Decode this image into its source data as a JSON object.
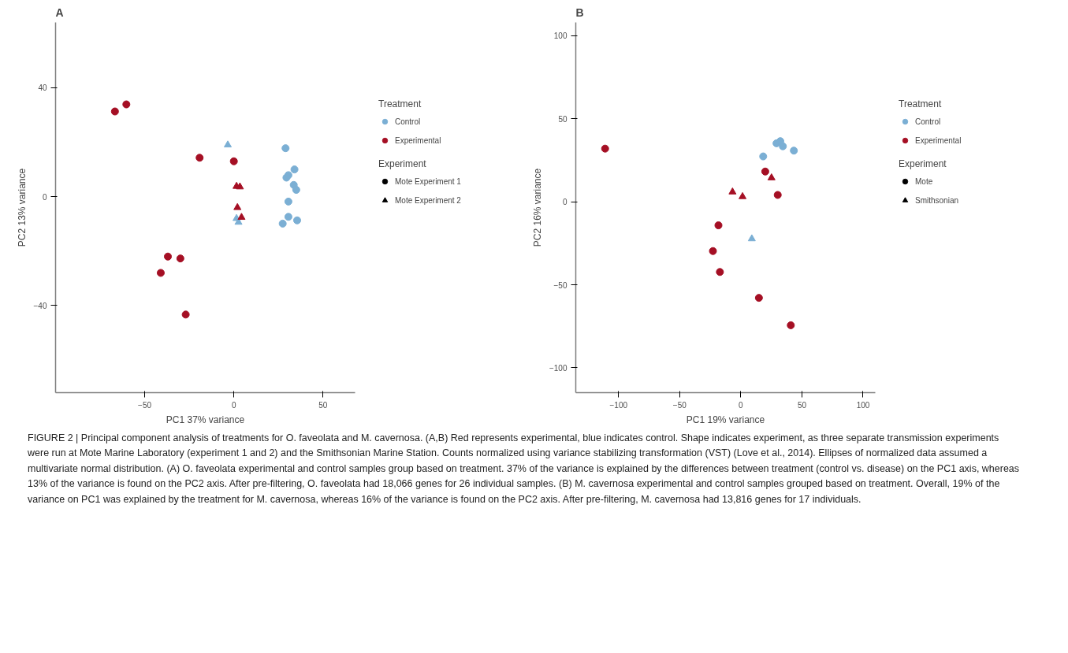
{
  "chart_data": [
    {
      "type": "scatter",
      "title": "A",
      "xlabel": "PC1 37% variance",
      "ylabel": "PC2 13% variance",
      "xlim": [
        -100,
        68
      ],
      "ylim": [
        -72,
        64
      ],
      "xticks": [
        -50,
        0,
        50
      ],
      "yticks": [
        -40,
        0,
        40
      ],
      "grid": false,
      "legend": "right",
      "legend_title": [
        "Treatment",
        "Experiment"
      ],
      "annotations": [
        "FIGURE 2 | Principal component analysis of treatments for O. faveolata and M. cavernosa. (A,B) Red represents experimental, blue indicates control. Shape indicates experiment, as three separate transmission experiments were run at Mote Marine Laboratory (experiment 1 and 2) and the Smithsonian Marine Station. Counts normalized using variance stabilizing transformation (VST) (Love et al., 2014). Ellipses of normalized data assumed a multivariate normal distribution. (A) O. faveolata experimental and control samples group based on treatment. 37% of the variance is explained by the differences between treatment (control vs. disease) on the PC1 axis, whereas 13% of the variance is found on the PC2 axis. After pre-filtering, O. faveolata had 18,066 genes for 26 individual samples. (B) M. cavernosa experimental and control samples grouped based on treatment. Overall, 19% of the variance on PC1 was explained by the treatment for M. cavernosa, whereas 16% of the variance is found on the PC2 axis. After pre-filtering, M. cavernosa had 13,816 genes for 17 individuals."
      ],
      "series": [
        {
          "color": "#7bafd4",
          "marker": "circle",
          "x": [
            29,
            34,
            30.6,
            29.5,
            33.6,
            35,
            30.6,
            30.6,
            35.5,
            27.4
          ],
          "values": [
            17.8,
            10,
            7.9,
            7,
            4.3,
            2.5,
            -1.8,
            -7.4,
            -8.7,
            -9.9
          ]
        },
        {
          "color": "#7bafd4",
          "marker": "triangle",
          "x": [
            -3.4,
            2.6,
            1.5
          ],
          "values": [
            19,
            -9.4,
            -8
          ]
        },
        {
          "color": "#a50f24",
          "marker": "circle",
          "x": [
            -66.7,
            -60.3,
            -19.2,
            0,
            -37,
            -30,
            -41,
            -27
          ],
          "values": [
            31.3,
            33.9,
            14.3,
            13,
            -22,
            -22.7,
            -28,
            -43.3
          ]
        },
        {
          "color": "#a50f24",
          "marker": "triangle",
          "x": [
            3.4,
            1.5,
            2,
            4.3
          ],
          "values": [
            3.6,
            3.8,
            -4,
            -7.6
          ]
        },
        {
          "name": "Control",
          "color": "#7bafd4",
          "marker": "circle"
        },
        {
          "name": "Experimental",
          "color": "#a50f24",
          "marker": "circle"
        },
        {
          "name": "Mote Experiment 1",
          "color": "#000000",
          "marker": "circle"
        },
        {
          "name": "Mote Experiment 2",
          "color": "#000000",
          "marker": "triangle"
        }
      ]
    },
    {
      "type": "scatter",
      "title": "B",
      "xlabel": "PC1 19% variance",
      "ylabel": "PC2 16% variance",
      "xlim": [
        -135,
        110
      ],
      "ylim": [
        -115,
        108
      ],
      "xticks": [
        -100,
        -50,
        0,
        50,
        100
      ],
      "yticks": [
        -100,
        -50,
        0,
        50,
        100
      ],
      "grid": false,
      "legend": "right",
      "legend_title": [
        "Treatment",
        "Experiment"
      ],
      "series": [
        {
          "color": "#7bafd4",
          "marker": "circle",
          "x": [
            18.3,
            29.2,
            32.3,
            34.4,
            43.4
          ],
          "values": [
            27.3,
            35.2,
            36.5,
            33.4,
            30.8
          ]
        },
        {
          "color": "#7bafd4",
          "marker": "triangle",
          "x": [
            9
          ],
          "values": [
            -22.3
          ]
        },
        {
          "color": "#a50f24",
          "marker": "circle",
          "x": [
            -111,
            20,
            30.2,
            -18.3,
            -22.8,
            -17.1,
            14.8,
            40.9
          ],
          "values": [
            32,
            18.2,
            4.1,
            -14.2,
            -29.7,
            -42.3,
            -57.9,
            -74.4
          ]
        },
        {
          "color": "#a50f24",
          "marker": "triangle",
          "x": [
            -6.8,
            1.4,
            25.1
          ],
          "values": [
            5.9,
            3.1,
            14.4
          ]
        },
        {
          "name": "Control",
          "color": "#7bafd4",
          "marker": "circle"
        },
        {
          "name": "Experimental",
          "color": "#a50f24",
          "marker": "circle"
        },
        {
          "name": "Mote",
          "color": "#000000",
          "marker": "circle"
        },
        {
          "name": "Smithsonian",
          "color": "#000000",
          "marker": "triangle"
        }
      ]
    }
  ]
}
